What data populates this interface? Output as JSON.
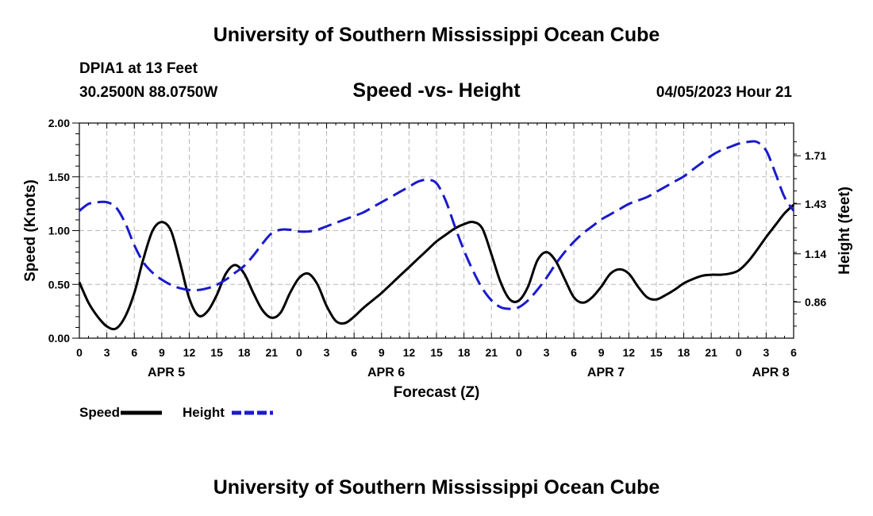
{
  "header": {
    "title": "University of Southern Mississippi Ocean Cube",
    "station": "DPIA1 at 13 Feet",
    "coordinates": "30.2500N  88.0750W",
    "datetime": "04/05/2023 Hour 21"
  },
  "footer": {
    "title": "University of Southern Mississippi Ocean Cube"
  },
  "chart_data": {
    "type": "line",
    "title": "Speed -vs- Height",
    "xlabel": "Forecast (Z)",
    "ylabel": "Speed (Knots)",
    "y2label": "Height (feet)",
    "x_range": [
      0,
      78
    ],
    "ylim": [
      0,
      2
    ],
    "y2lim": [
      0.65,
      1.9
    ],
    "x_tick_labels": [
      "0",
      "3",
      "6",
      "9",
      "12",
      "15",
      "18",
      "21",
      "0",
      "3",
      "6",
      "9",
      "12",
      "15",
      "18",
      "21",
      "0",
      "3",
      "6",
      "9",
      "12",
      "15",
      "18",
      "21",
      "0",
      "3",
      "6"
    ],
    "date_labels": [
      {
        "label": "APR 5",
        "x": 9.5
      },
      {
        "label": "APR 6",
        "x": 33.5
      },
      {
        "label": "APR 7",
        "x": 57.5
      },
      {
        "label": "APR 8",
        "x": 75.5
      }
    ],
    "y_ticks": [
      "0.00",
      "0.50",
      "1.00",
      "1.50",
      "2.00"
    ],
    "y_tick_values": [
      0,
      0.5,
      1.0,
      1.5,
      2.0
    ],
    "y2_ticks": [
      "0.86",
      "1.14",
      "1.43",
      "1.71"
    ],
    "y2_tick_values": [
      0.86,
      1.14,
      1.43,
      1.71
    ],
    "grid": true,
    "legend_position": "bottom-left",
    "series": [
      {
        "name": "Speed",
        "axis": "left",
        "color": "#000000",
        "style": "solid",
        "x": [
          0,
          1,
          2,
          3,
          4,
          5,
          6,
          7,
          8,
          9,
          10,
          11,
          12,
          13,
          14,
          15,
          16,
          17,
          18,
          19,
          20,
          21,
          22,
          23,
          24,
          25,
          26,
          27,
          28,
          29,
          30,
          31,
          32,
          33,
          34,
          35,
          36,
          37,
          38,
          39,
          40,
          41,
          42,
          43,
          44,
          45,
          46,
          47,
          48,
          49,
          50,
          51,
          52,
          53,
          54,
          55,
          56,
          57,
          58,
          59,
          60,
          61,
          62,
          63,
          64,
          65,
          66,
          67,
          68,
          69,
          70,
          71,
          72,
          73,
          74,
          75,
          76,
          77,
          78
        ],
        "values": [
          0.52,
          0.33,
          0.2,
          0.11,
          0.09,
          0.2,
          0.42,
          0.74,
          1.0,
          1.08,
          1.0,
          0.7,
          0.37,
          0.21,
          0.25,
          0.4,
          0.6,
          0.68,
          0.6,
          0.42,
          0.26,
          0.19,
          0.24,
          0.42,
          0.56,
          0.6,
          0.5,
          0.3,
          0.16,
          0.14,
          0.2,
          0.28,
          0.35,
          0.42,
          0.5,
          0.58,
          0.66,
          0.74,
          0.82,
          0.9,
          0.96,
          1.02,
          1.06,
          1.08,
          1.02,
          0.78,
          0.52,
          0.36,
          0.35,
          0.48,
          0.72,
          0.8,
          0.72,
          0.55,
          0.38,
          0.33,
          0.38,
          0.48,
          0.6,
          0.64,
          0.6,
          0.48,
          0.38,
          0.36,
          0.4,
          0.45,
          0.51,
          0.55,
          0.58,
          0.59,
          0.59,
          0.6,
          0.63,
          0.71,
          0.82,
          0.94,
          1.05,
          1.16,
          1.24
        ]
      },
      {
        "name": "Height",
        "axis": "right",
        "color": "#1a1acc",
        "style": "dashed",
        "x": [
          0,
          1,
          2,
          3,
          4,
          5,
          6,
          7,
          8,
          9,
          10,
          11,
          12,
          13,
          14,
          15,
          16,
          17,
          18,
          19,
          20,
          21,
          22,
          23,
          24,
          25,
          26,
          27,
          28,
          29,
          30,
          31,
          32,
          33,
          34,
          35,
          36,
          37,
          38,
          39,
          40,
          41,
          42,
          43,
          44,
          45,
          46,
          47,
          48,
          49,
          50,
          51,
          52,
          53,
          54,
          55,
          56,
          57,
          58,
          59,
          60,
          61,
          62,
          63,
          64,
          65,
          66,
          67,
          68,
          69,
          70,
          71,
          72,
          73,
          74,
          75,
          76,
          77,
          78
        ],
        "values": [
          1.39,
          1.43,
          1.44,
          1.44,
          1.41,
          1.32,
          1.19,
          1.09,
          1.03,
          0.99,
          0.96,
          0.94,
          0.93,
          0.93,
          0.94,
          0.96,
          0.99,
          1.03,
          1.07,
          1.13,
          1.2,
          1.26,
          1.28,
          1.28,
          1.27,
          1.27,
          1.28,
          1.3,
          1.32,
          1.34,
          1.36,
          1.38,
          1.41,
          1.44,
          1.47,
          1.5,
          1.53,
          1.56,
          1.57,
          1.55,
          1.45,
          1.3,
          1.16,
          1.04,
          0.94,
          0.87,
          0.83,
          0.82,
          0.83,
          0.87,
          0.93,
          1.0,
          1.08,
          1.15,
          1.21,
          1.26,
          1.3,
          1.34,
          1.37,
          1.4,
          1.43,
          1.45,
          1.47,
          1.5,
          1.53,
          1.56,
          1.59,
          1.63,
          1.67,
          1.71,
          1.74,
          1.76,
          1.78,
          1.79,
          1.79,
          1.74,
          1.61,
          1.47,
          1.39
        ]
      }
    ]
  }
}
